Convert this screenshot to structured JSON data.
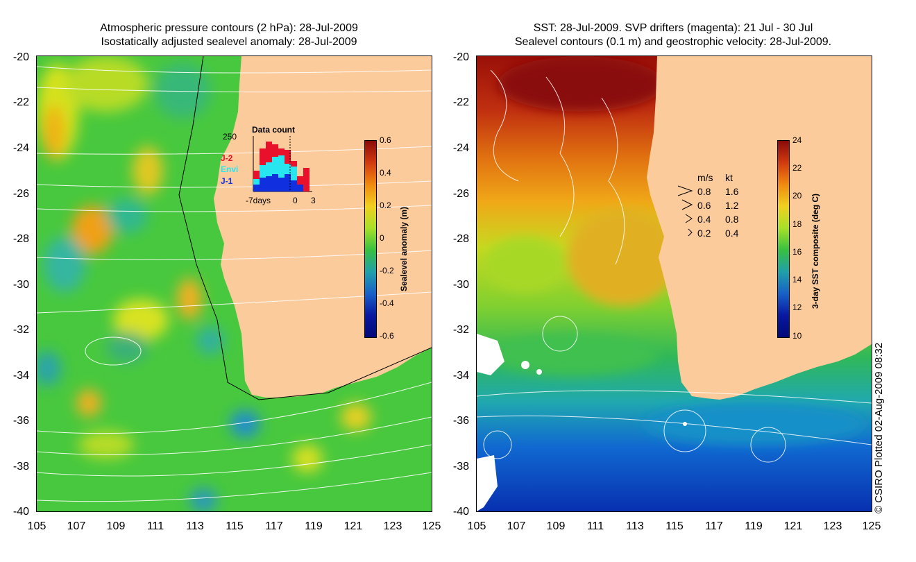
{
  "left": {
    "title1": "Atmospheric pressure contours (2 hPa): 28-Jul-2009",
    "title2": "Isostatically adjusted sealevel anomaly: 28-Jul-2009",
    "colorbar_label": "Sealevel anomaly (m)",
    "colorbar_ticks": [
      "0.6",
      "0.4",
      "0.2",
      "0",
      "-0.2",
      "-0.4",
      "-0.6"
    ],
    "inset": {
      "title": "Data count",
      "ymax": "250",
      "legend": [
        {
          "label": "J-2",
          "color": "#e8102b"
        },
        {
          "label": "Envi",
          "color": "#28e6f0"
        },
        {
          "label": "J-1",
          "color": "#1030e0"
        }
      ],
      "xlabels": [
        "-7days",
        "0",
        "3"
      ]
    }
  },
  "right": {
    "title1": "SST: 28-Jul-2009. SVP drifters (magenta): 21 Jul - 30 Jul",
    "title2": "Sealevel contours (0.1 m) and geostrophic velocity: 28-Jul-2009.",
    "colorbar_label": "3-day SST composite (deg C)",
    "colorbar_ticks": [
      "24",
      "22",
      "20",
      "18",
      "16",
      "14",
      "12",
      "10"
    ],
    "legend_header": [
      "m/s",
      "kt"
    ],
    "legend_rows": [
      [
        "0.8",
        "1.6"
      ],
      [
        "0.6",
        "1.2"
      ],
      [
        "0.4",
        "0.8"
      ],
      [
        "0.2",
        "0.4"
      ]
    ]
  },
  "axes": {
    "y_ticks": [
      "-20",
      "-22",
      "-24",
      "-26",
      "-28",
      "-30",
      "-32",
      "-34",
      "-36",
      "-38",
      "-40"
    ],
    "x_ticks": [
      "105",
      "107",
      "109",
      "111",
      "113",
      "115",
      "117",
      "119",
      "121",
      "123",
      "125"
    ]
  },
  "copyright": "© CSIRO Plotted 02-Aug-2009 08:32",
  "colors": {
    "land": "#fccb9c",
    "sea_mid": "#3cc43c"
  }
}
